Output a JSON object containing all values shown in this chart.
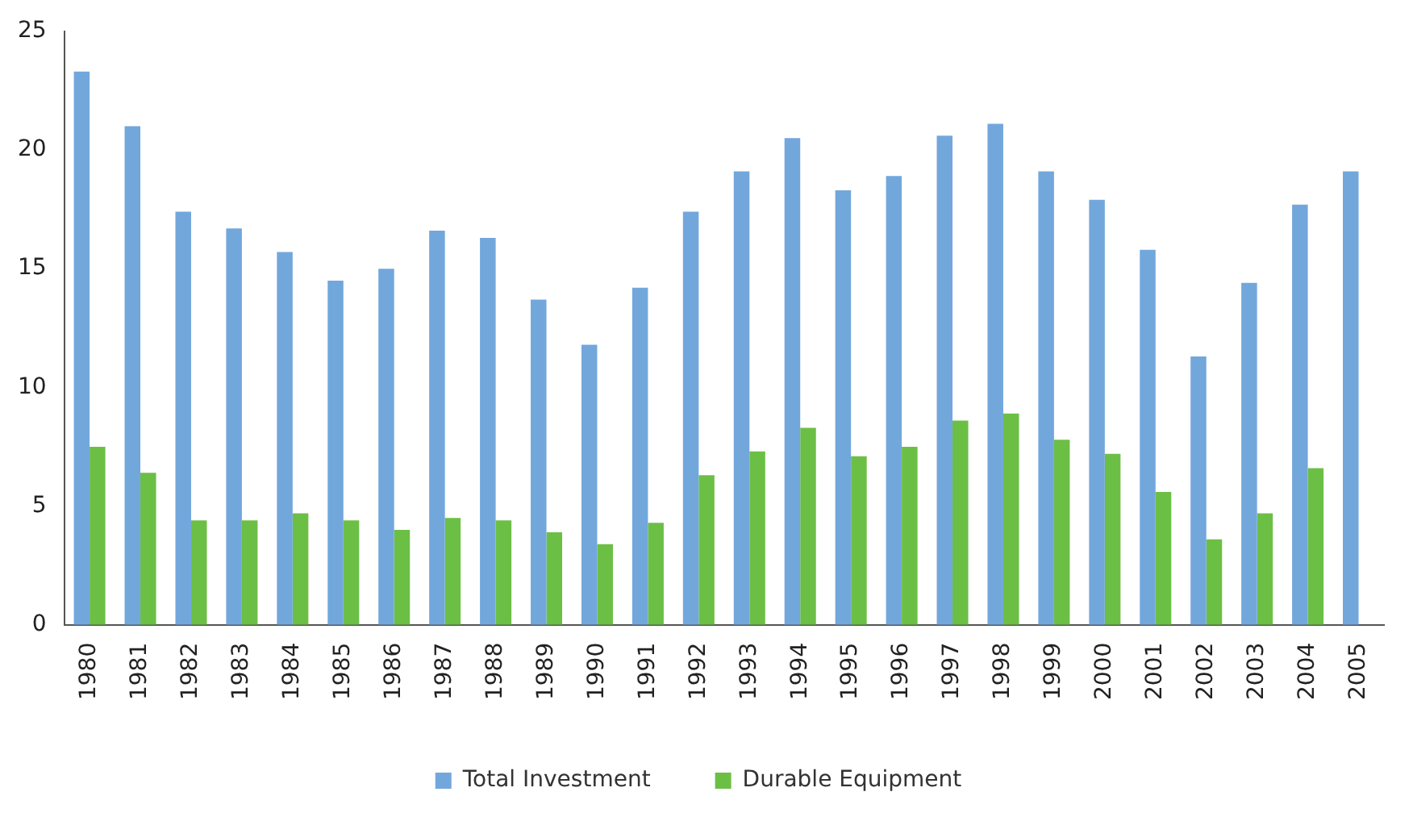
{
  "chart_data": {
    "type": "bar",
    "categories": [
      "1980",
      "1981",
      "1982",
      "1983",
      "1984",
      "1985",
      "1986",
      "1987",
      "1988",
      "1989",
      "1990",
      "1991",
      "1992",
      "1993",
      "1994",
      "1995",
      "1996",
      "1997",
      "1998",
      "1999",
      "2000",
      "2001",
      "2002",
      "2003",
      "2004",
      "2005"
    ],
    "series": [
      {
        "name": "Total Investment",
        "color": "#72a7dc",
        "values": [
          23.3,
          21.0,
          17.4,
          16.7,
          15.7,
          14.5,
          15.0,
          16.6,
          16.3,
          13.7,
          11.8,
          14.2,
          17.4,
          19.1,
          20.5,
          18.3,
          18.9,
          20.6,
          21.1,
          19.1,
          17.9,
          15.8,
          11.3,
          14.4,
          17.7,
          19.1
        ]
      },
      {
        "name": "Durable Equipment",
        "color": "#6cbf45",
        "values": [
          7.5,
          6.4,
          4.4,
          4.4,
          4.7,
          4.4,
          4.0,
          4.5,
          4.4,
          3.9,
          3.4,
          4.3,
          6.3,
          7.3,
          8.3,
          7.1,
          7.5,
          8.6,
          8.9,
          7.8,
          7.2,
          5.6,
          3.6,
          4.7,
          6.6,
          null
        ]
      }
    ],
    "ylim": [
      0,
      25
    ],
    "yticks": [
      0,
      5,
      10,
      15,
      20,
      25
    ],
    "grid": false,
    "legend": "bottom"
  }
}
